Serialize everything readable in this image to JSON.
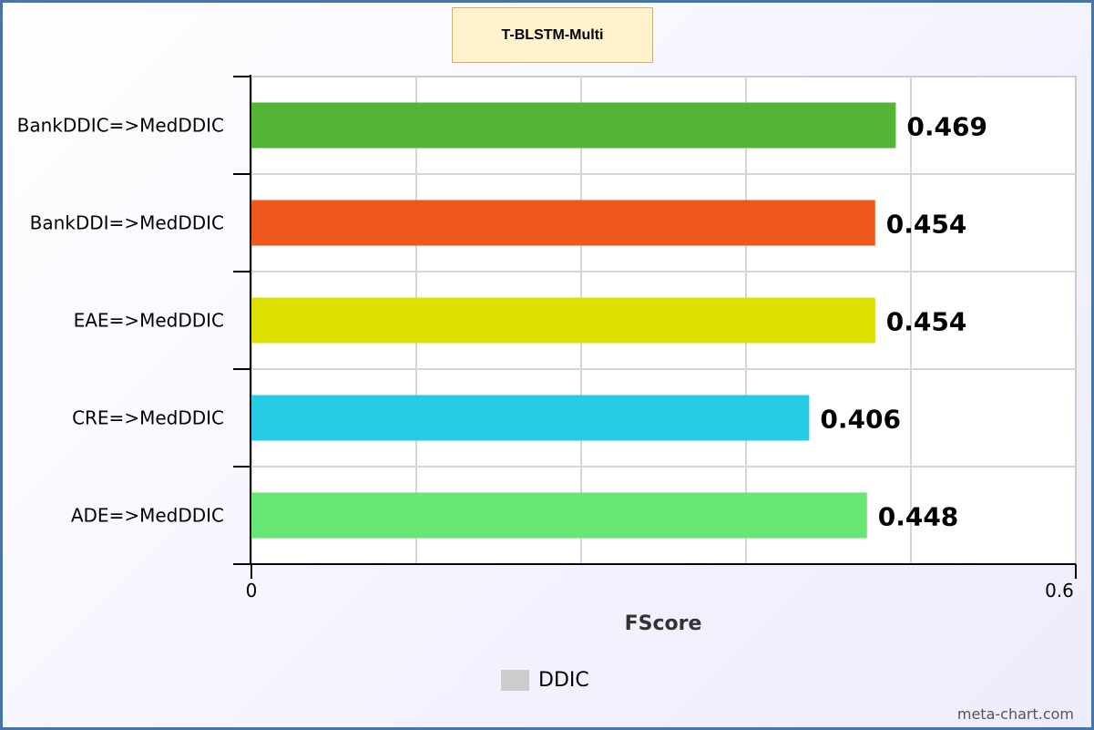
{
  "chart_data": {
    "type": "bar",
    "orientation": "horizontal",
    "title": "T-BLSTM-Multi",
    "categories": [
      "BankDDIC=>MedDDIC",
      "BankDDI=>MedDDIC",
      "EAE=>MedDDIC",
      "CRE=>MedDDIC",
      "ADE=>MedDDIC"
    ],
    "values": [
      0.469,
      0.454,
      0.454,
      0.406,
      0.448
    ],
    "value_labels": [
      "0.469",
      "0.454",
      "0.454",
      "0.406",
      "0.448"
    ],
    "colors": [
      "#52b535",
      "#ee581c",
      "#dee000",
      "#26cce6",
      "#66e672"
    ],
    "xlabel": "FScore",
    "xlim": [
      0,
      0.6
    ],
    "xticks": [
      "0",
      "0.6"
    ],
    "grid": true,
    "legend": {
      "label": "DDIC",
      "color": "#cccccc",
      "placement": "bottom-center"
    }
  },
  "watermark": "meta-chart.com"
}
